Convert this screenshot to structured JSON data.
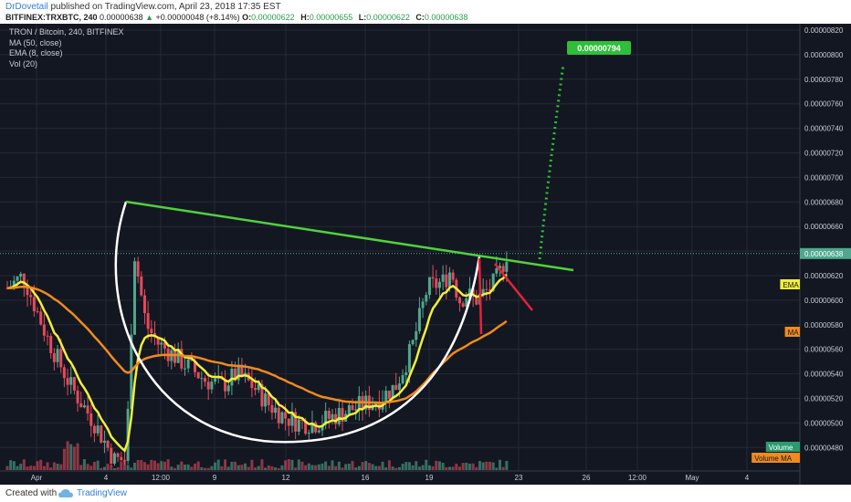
{
  "header": {
    "author": "DrDovetail",
    "published": "published on TradingView.com, April 23, 2018 17:35 EST",
    "symbol": "BITFINEX:TRXBTC, 240",
    "last": "0.00000638",
    "change": "+0.00000048 (+8.14%)",
    "open_label": "O:",
    "open": "0.00000622",
    "high_label": "H:",
    "high": "0.00000655",
    "low_label": "L:",
    "low": "0.00000622",
    "close_label": "C:",
    "close": "0.00000638"
  },
  "legend": {
    "title": "TRON / Bitcoin, 240, BITFINEX",
    "ma": "MA (50, close)",
    "ema": "EMA (8, close)",
    "vol": "Vol (20)"
  },
  "footer": {
    "created": "Created with",
    "brand": "TradingView"
  },
  "colors": {
    "background": "#131722",
    "grid": "#262a35",
    "up": "#4fa88d",
    "down": "#e34b5a",
    "ema": "#f2ee3a",
    "ma": "#f08a1e",
    "trendline": "#4fd23c",
    "cup": "#ffffff",
    "red_lines": "#e8223a",
    "target": "#2fbf3a",
    "text": "#c8cbd3"
  },
  "chart_data": {
    "type": "candlestick",
    "title": "TRON / Bitcoin, 240, BITFINEX",
    "y_ticks": [
      "0.00000820",
      "0.00000800",
      "0.00000780",
      "0.00000760",
      "0.00000740",
      "0.00000720",
      "0.00000700",
      "0.00000680",
      "0.00000660",
      "0.00000640",
      "0.00000620",
      "0.00000600",
      "0.00000580",
      "0.00000560",
      "0.00000540",
      "0.00000520",
      "0.00000500",
      "0.00000480"
    ],
    "x_ticks": [
      "Apr",
      "4",
      "12:00",
      "9",
      "12",
      "16",
      "19",
      "23",
      "26",
      "12:00",
      "May",
      "4"
    ],
    "ylim": [
      4.7e-06,
      8.3e-06
    ],
    "price_line": 6.38e-06,
    "target_label": "0.00000794",
    "tags": {
      "ema": "EMA",
      "ma": "MA",
      "volume": "Volume",
      "volume_ma": "Volume MA"
    },
    "candles_note": "approximate OHLC shape of the price action, values in BTC",
    "price_points": [
      [
        0,
        6.1e-06
      ],
      [
        0.02,
        6.2e-06
      ],
      [
        0.05,
        5.7e-06
      ],
      [
        0.08,
        5.3e-06
      ],
      [
        0.11,
        5e-06
      ],
      [
        0.135,
        4.7e-06
      ],
      [
        0.15,
        4.7e-06
      ],
      [
        0.16,
        6.4e-06
      ],
      [
        0.175,
        5.8e-06
      ],
      [
        0.19,
        5.65e-06
      ],
      [
        0.21,
        5.55e-06
      ],
      [
        0.23,
        5.45e-06
      ],
      [
        0.25,
        5.35e-06
      ],
      [
        0.27,
        5.3e-06
      ],
      [
        0.29,
        5.4e-06
      ],
      [
        0.31,
        5.3e-06
      ],
      [
        0.33,
        5.15e-06
      ],
      [
        0.35,
        5.05e-06
      ],
      [
        0.37,
        5e-06
      ],
      [
        0.39,
        5e-06
      ],
      [
        0.41,
        5.05e-06
      ],
      [
        0.43,
        5.1e-06
      ],
      [
        0.45,
        5.15e-06
      ],
      [
        0.47,
        5.2e-06
      ],
      [
        0.49,
        5.3e-06
      ],
      [
        0.51,
        5.6e-06
      ],
      [
        0.53,
        6.1e-06
      ],
      [
        0.55,
        6.15e-06
      ],
      [
        0.56,
        6.25e-06
      ],
      [
        0.57,
        6e-06
      ],
      [
        0.58,
        6.05e-06
      ],
      [
        0.59,
        6e-06
      ],
      [
        0.6,
        6.05e-06
      ],
      [
        0.61,
        6.1e-06
      ],
      [
        0.62,
        6.2e-06
      ],
      [
        0.63,
        6.38e-06
      ]
    ]
  }
}
